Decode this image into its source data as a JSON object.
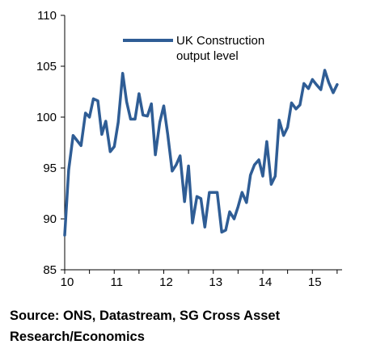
{
  "chart_data": {
    "type": "line",
    "title": "",
    "xlabel": "",
    "ylabel": "",
    "ylim": [
      85,
      110
    ],
    "xlim": [
      10,
      15.6
    ],
    "yticks": [
      85,
      90,
      95,
      100,
      105,
      110
    ],
    "xticks": [
      10,
      11,
      12,
      13,
      14,
      15
    ],
    "xtick_labels": [
      "10",
      "11",
      "12",
      "13",
      "14",
      "15"
    ],
    "grid": false,
    "legend": {
      "placement": "top-left",
      "lines": [
        "UK Construction",
        "output level"
      ]
    },
    "series": [
      {
        "name": "UK Construction output level",
        "color": "#2f5d95",
        "x": [
          10.0,
          10.08,
          10.17,
          10.25,
          10.33,
          10.42,
          10.5,
          10.58,
          10.67,
          10.75,
          10.83,
          10.92,
          11.0,
          11.08,
          11.17,
          11.25,
          11.33,
          11.42,
          11.5,
          11.58,
          11.67,
          11.75,
          11.83,
          11.92,
          12.0,
          12.08,
          12.17,
          12.25,
          12.33,
          12.42,
          12.5,
          12.58,
          12.67,
          12.75,
          12.83,
          12.92,
          13.0,
          13.08,
          13.17,
          13.25,
          13.33,
          13.42,
          13.5,
          13.58,
          13.67,
          13.75,
          13.83,
          13.92,
          14.0,
          14.08,
          14.17,
          14.25,
          14.33,
          14.42,
          14.5,
          14.58,
          14.67,
          14.75,
          14.83,
          14.92,
          15.0,
          15.08,
          15.17,
          15.25,
          15.33,
          15.42,
          15.5
        ],
        "values": [
          88.4,
          94.8,
          98.2,
          97.7,
          97.2,
          100.4,
          100.0,
          101.8,
          101.6,
          98.3,
          99.6,
          96.6,
          97.1,
          99.5,
          104.3,
          101.5,
          99.8,
          99.8,
          102.3,
          100.2,
          100.1,
          101.3,
          96.3,
          99.5,
          101.1,
          98.3,
          94.7,
          95.3,
          96.2,
          91.7,
          95.2,
          89.6,
          92.2,
          92.0,
          89.2,
          92.6,
          92.6,
          92.6,
          88.7,
          88.9,
          90.7,
          90.0,
          91.2,
          92.6,
          91.6,
          94.3,
          95.3,
          95.8,
          94.2,
          97.6,
          93.4,
          94.2,
          99.7,
          98.2,
          99.0,
          101.4,
          100.8,
          101.2,
          103.3,
          102.8,
          103.7,
          103.2,
          102.7,
          104.6,
          103.4,
          102.4,
          103.2
        ]
      }
    ]
  },
  "source_text": "Source: ONS, Datastream, SG Cross Asset Research/Economics"
}
